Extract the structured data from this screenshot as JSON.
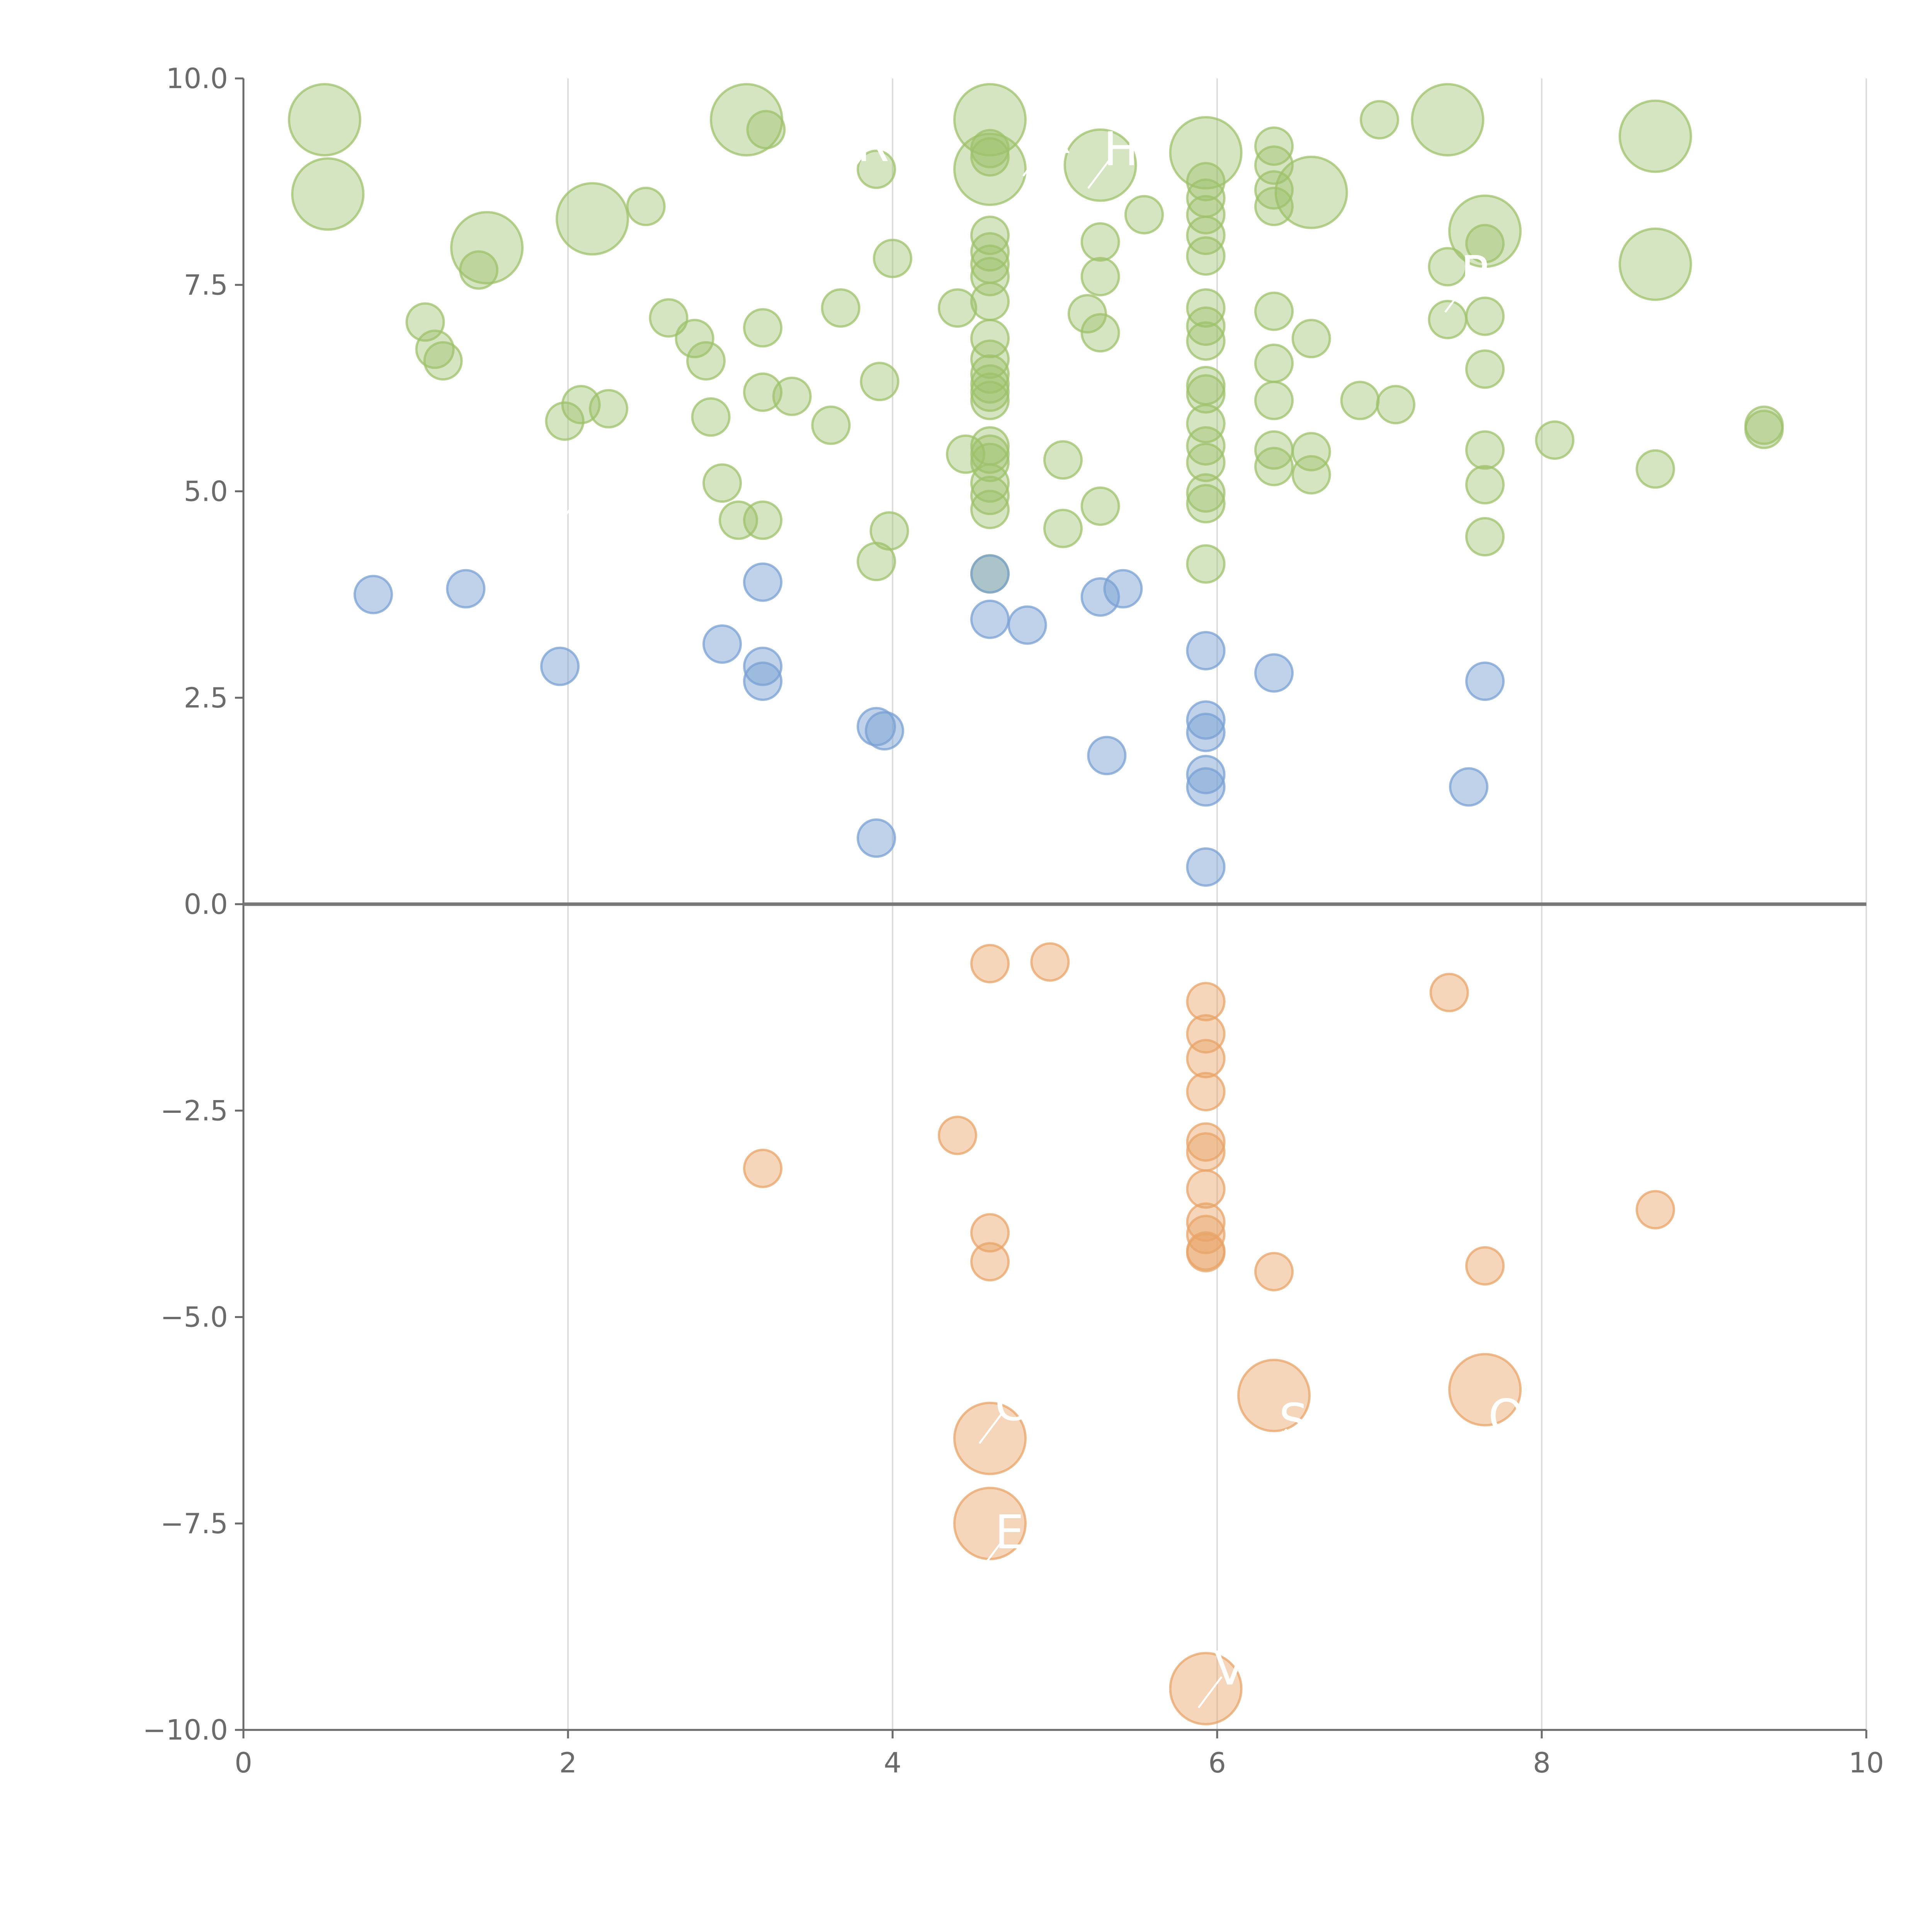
{
  "chart_data": {
    "type": "scatter",
    "title": "",
    "xlabel": "",
    "ylabel": "",
    "xlim": [
      0,
      10
    ],
    "ylim": [
      -10,
      10
    ],
    "x_ticks": [
      0,
      2,
      4,
      6,
      8,
      10
    ],
    "x_tick_labels": [
      "0",
      "2",
      "4",
      "6",
      "8",
      "10"
    ],
    "y_ticks": [
      10,
      7.5,
      5,
      2.5,
      0,
      -2.5,
      -5,
      -7.5,
      -10
    ],
    "y_tick_labels": [
      "10.0",
      "7.5",
      "5.0",
      "2.5",
      "0.0",
      "−2.5",
      "−5.0",
      "−7.5",
      "−10.0"
    ],
    "vertical_grid": true,
    "horizontal_grid": false,
    "zero_line": true,
    "series": [
      {
        "color": "#9dc26b",
        "opacity": 0.42,
        "points": [
          [
            0.5,
            9.5,
            2
          ],
          [
            0.52,
            8.6,
            2
          ],
          [
            1.5,
            7.95,
            2
          ],
          [
            2.15,
            8.3,
            2
          ],
          [
            3.1,
            9.5,
            2
          ],
          [
            3.22,
            9.38,
            1
          ],
          [
            4.6,
            9.5,
            2
          ],
          [
            4.6,
            8.9,
            2
          ],
          [
            5.28,
            8.95,
            2
          ],
          [
            5.93,
            9.1,
            2
          ],
          [
            6.58,
            8.62,
            2
          ],
          [
            7.42,
            9.5,
            2
          ],
          [
            7.65,
            8.15,
            2
          ],
          [
            8.7,
            9.3,
            2
          ],
          [
            8.7,
            7.75,
            2
          ],
          [
            1.12,
            7.05,
            1
          ],
          [
            1.18,
            6.72,
            1
          ],
          [
            1.23,
            6.58,
            1
          ],
          [
            1.45,
            7.68,
            1
          ],
          [
            1.98,
            5.85,
            1
          ],
          [
            2.08,
            6.05,
            1
          ],
          [
            2.25,
            6.0,
            1
          ],
          [
            2.48,
            8.45,
            1
          ],
          [
            2.62,
            7.1,
            1
          ],
          [
            2.78,
            6.85,
            1
          ],
          [
            2.85,
            6.58,
            1
          ],
          [
            2.88,
            5.9,
            1
          ],
          [
            2.95,
            5.1,
            1
          ],
          [
            3.05,
            4.65,
            1
          ],
          [
            3.2,
            4.65,
            1
          ],
          [
            3.2,
            6.98,
            1
          ],
          [
            3.2,
            6.2,
            1
          ],
          [
            3.38,
            6.15,
            1
          ],
          [
            3.62,
            5.8,
            1
          ],
          [
            3.68,
            7.22,
            1
          ],
          [
            3.9,
            8.9,
            1
          ],
          [
            3.92,
            6.33,
            1
          ],
          [
            3.9,
            4.15,
            1
          ],
          [
            3.98,
            4.52,
            1
          ],
          [
            4.0,
            7.82,
            1
          ],
          [
            4.4,
            7.22,
            1
          ],
          [
            4.45,
            5.45,
            1
          ],
          [
            4.6,
            9.15,
            1
          ],
          [
            4.6,
            9.05,
            1
          ],
          [
            4.6,
            8.1,
            1
          ],
          [
            4.6,
            7.9,
            1
          ],
          [
            4.6,
            7.75,
            1
          ],
          [
            4.6,
            7.6,
            1
          ],
          [
            4.6,
            7.3,
            1
          ],
          [
            4.6,
            6.85,
            1
          ],
          [
            4.6,
            6.6,
            1
          ],
          [
            4.6,
            6.42,
            1
          ],
          [
            4.6,
            6.3,
            1
          ],
          [
            4.6,
            6.2,
            1
          ],
          [
            4.6,
            6.1,
            1
          ],
          [
            4.6,
            5.55,
            1
          ],
          [
            4.6,
            5.45,
            1
          ],
          [
            4.6,
            5.35,
            1
          ],
          [
            4.6,
            5.1,
            1
          ],
          [
            4.6,
            4.95,
            1
          ],
          [
            4.6,
            4.78,
            1
          ],
          [
            4.6,
            4.0,
            1
          ],
          [
            5.05,
            4.55,
            1
          ],
          [
            5.05,
            5.38,
            1
          ],
          [
            5.2,
            7.15,
            1
          ],
          [
            5.28,
            8.02,
            1
          ],
          [
            5.28,
            7.6,
            1
          ],
          [
            5.28,
            6.92,
            1
          ],
          [
            5.28,
            4.82,
            1
          ],
          [
            5.55,
            8.35,
            1
          ],
          [
            5.93,
            8.75,
            1
          ],
          [
            5.93,
            8.55,
            1
          ],
          [
            5.93,
            8.35,
            1
          ],
          [
            5.93,
            8.1,
            1
          ],
          [
            5.93,
            7.85,
            1
          ],
          [
            5.93,
            7.22,
            1
          ],
          [
            5.93,
            7.0,
            1
          ],
          [
            5.93,
            6.82,
            1
          ],
          [
            5.93,
            6.28,
            1
          ],
          [
            5.93,
            6.18,
            1
          ],
          [
            5.93,
            5.82,
            1
          ],
          [
            5.93,
            5.55,
            1
          ],
          [
            5.93,
            5.35,
            1
          ],
          [
            5.93,
            4.98,
            1
          ],
          [
            5.93,
            4.85,
            1
          ],
          [
            5.93,
            4.12,
            1
          ],
          [
            6.35,
            9.18,
            1
          ],
          [
            6.35,
            8.95,
            1
          ],
          [
            6.35,
            8.65,
            1
          ],
          [
            6.35,
            8.45,
            1
          ],
          [
            6.35,
            7.18,
            1
          ],
          [
            6.35,
            6.55,
            1
          ],
          [
            6.35,
            6.1,
            1
          ],
          [
            6.35,
            5.5,
            1
          ],
          [
            6.35,
            5.3,
            1
          ],
          [
            6.58,
            6.85,
            1
          ],
          [
            6.58,
            5.48,
            1
          ],
          [
            6.58,
            5.2,
            1
          ],
          [
            6.88,
            6.1,
            1
          ],
          [
            7.0,
            9.5,
            1
          ],
          [
            7.1,
            6.05,
            1
          ],
          [
            7.42,
            7.72,
            1
          ],
          [
            7.42,
            7.08,
            1
          ],
          [
            7.65,
            8.0,
            1
          ],
          [
            7.65,
            7.12,
            1
          ],
          [
            7.65,
            6.48,
            1
          ],
          [
            7.65,
            5.5,
            1
          ],
          [
            7.65,
            5.08,
            1
          ],
          [
            7.65,
            4.45,
            1
          ],
          [
            8.08,
            5.62,
            1
          ],
          [
            8.7,
            5.27,
            1
          ],
          [
            9.37,
            5.8,
            1
          ],
          [
            9.37,
            5.75,
            1
          ]
        ]
      },
      {
        "color": "#7aa0d3",
        "opacity": 0.48,
        "points": [
          [
            0.8,
            3.75,
            1
          ],
          [
            1.37,
            3.82,
            1
          ],
          [
            1.95,
            2.88,
            1
          ],
          [
            2.95,
            3.15,
            1
          ],
          [
            3.2,
            3.9,
            1
          ],
          [
            3.2,
            2.88,
            1
          ],
          [
            3.2,
            2.7,
            1
          ],
          [
            3.9,
            2.15,
            1
          ],
          [
            3.95,
            2.1,
            1
          ],
          [
            3.9,
            0.8,
            1
          ],
          [
            4.6,
            4.0,
            1
          ],
          [
            4.6,
            3.45,
            1
          ],
          [
            4.83,
            3.38,
            1
          ],
          [
            5.28,
            3.72,
            1
          ],
          [
            5.42,
            3.82,
            1
          ],
          [
            5.32,
            1.8,
            1
          ],
          [
            5.93,
            3.07,
            1
          ],
          [
            5.93,
            2.23,
            1
          ],
          [
            5.93,
            2.08,
            1
          ],
          [
            5.93,
            1.57,
            1
          ],
          [
            5.93,
            1.42,
            1
          ],
          [
            5.93,
            0.45,
            1
          ],
          [
            6.35,
            2.8,
            1
          ],
          [
            7.55,
            1.42,
            1
          ],
          [
            7.65,
            2.7,
            1
          ]
        ]
      },
      {
        "color": "#e8a468",
        "opacity": 0.45,
        "points": [
          [
            4.6,
            -0.72,
            1
          ],
          [
            4.97,
            -0.7,
            1
          ],
          [
            7.43,
            -1.07,
            1
          ],
          [
            5.93,
            -1.18,
            1
          ],
          [
            5.93,
            -1.57,
            1
          ],
          [
            5.93,
            -1.87,
            1
          ],
          [
            5.93,
            -2.27,
            1
          ],
          [
            4.4,
            -2.8,
            1
          ],
          [
            3.2,
            -3.2,
            1
          ],
          [
            5.93,
            -2.88,
            1
          ],
          [
            5.93,
            -3.0,
            1
          ],
          [
            5.93,
            -3.45,
            1
          ],
          [
            5.93,
            -3.85,
            1
          ],
          [
            5.93,
            -4.0,
            1
          ],
          [
            5.93,
            -4.2,
            1
          ],
          [
            5.93,
            -4.22,
            1
          ],
          [
            4.6,
            -3.98,
            1
          ],
          [
            4.6,
            -4.33,
            1
          ],
          [
            6.35,
            -4.45,
            1
          ],
          [
            7.65,
            -4.38,
            1
          ],
          [
            8.7,
            -3.7,
            1
          ],
          [
            4.6,
            -6.47,
            2
          ],
          [
            4.6,
            -7.5,
            2
          ],
          [
            6.35,
            -5.95,
            2
          ],
          [
            7.65,
            -5.88,
            2
          ],
          [
            5.93,
            -9.5,
            2
          ]
        ]
      }
    ],
    "annotations": [
      {
        "text": "P",
        "x": 2.0,
        "y": 4.78
      },
      {
        "text": "R",
        "x": 3.78,
        "y": 9.0
      },
      {
        "text": "R",
        "x": 4.9,
        "y": 9.1
      },
      {
        "text": "HC",
        "x": 5.3,
        "y": 8.95
      },
      {
        "text": "P",
        "x": 7.5,
        "y": 7.45
      },
      {
        "text": "C",
        "x": 4.63,
        "y": -6.25
      },
      {
        "text": "E",
        "x": 4.63,
        "y": -7.8
      },
      {
        "text": "S",
        "x": 6.38,
        "y": -6.45
      },
      {
        "text": "O",
        "x": 7.67,
        "y": -6.4
      },
      {
        "text": "V",
        "x": 5.98,
        "y": -9.45
      }
    ]
  }
}
